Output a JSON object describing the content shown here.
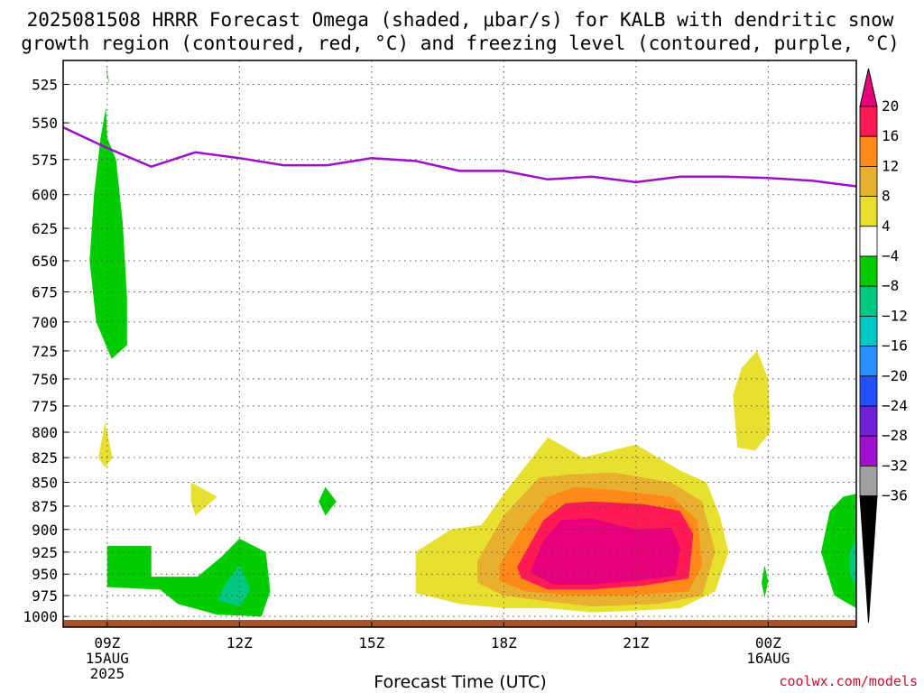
{
  "chart_data": {
    "type": "contour",
    "title_lines": [
      "2025081508 HRRR Forecast Omega (shaded, μbar/s) for KALB with dendritic snow",
      "growth region (contoured, red, °C) and freezing level (contoured, purple, °C)"
    ],
    "xlabel": "Forecast Time (UTC)",
    "ylabel": "",
    "x_ticks": [
      {
        "hour": 9,
        "lines": [
          "09Z",
          "15AUG",
          "2025"
        ]
      },
      {
        "hour": 12,
        "lines": [
          "12Z"
        ]
      },
      {
        "hour": 15,
        "lines": [
          "15Z"
        ]
      },
      {
        "hour": 18,
        "lines": [
          "18Z"
        ]
      },
      {
        "hour": 21,
        "lines": [
          "21Z"
        ]
      },
      {
        "hour": 24,
        "lines": [
          "00Z",
          "16AUG"
        ]
      }
    ],
    "xlim": [
      8,
      26
    ],
    "y_ticks": [
      525,
      550,
      575,
      600,
      625,
      650,
      675,
      700,
      725,
      750,
      775,
      800,
      825,
      850,
      875,
      900,
      925,
      950,
      975,
      1000
    ],
    "ylim_pressure": [
      510,
      1013
    ],
    "y_scale": "log-pressure",
    "grid": true,
    "freezing_level": {
      "color": "#9b0fc9",
      "points": [
        [
          8,
          553
        ],
        [
          8.5,
          560
        ],
        [
          9,
          567
        ],
        [
          10,
          580
        ],
        [
          11,
          570
        ],
        [
          12,
          574
        ],
        [
          13,
          579
        ],
        [
          14,
          579
        ],
        [
          15,
          574
        ],
        [
          16,
          576
        ],
        [
          17,
          583
        ],
        [
          18,
          583
        ],
        [
          19,
          589
        ],
        [
          20,
          587
        ],
        [
          21,
          591
        ],
        [
          22,
          587
        ],
        [
          23,
          587
        ],
        [
          24,
          588
        ],
        [
          25,
          590
        ],
        [
          26,
          594
        ]
      ]
    },
    "colorbar": {
      "labels": [
        "20",
        "16",
        "12",
        "8",
        "4",
        "−4",
        "−8",
        "−12",
        "−16",
        "−20",
        "−24",
        "−28",
        "−32",
        "−36"
      ],
      "colors": [
        "#ff1a55",
        "#ff8a1a",
        "#e8b02e",
        "#e8e030",
        "#ffffff",
        "#00cc00",
        "#00c880",
        "#00c8c8",
        "#2a90ff",
        "#2050ff",
        "#7020d8",
        "#a010d0",
        "#a0a0a0"
      ],
      "top_arrow": "#e8007a",
      "bottom_arrow": "#000000"
    },
    "omega_regions": [
      {
        "value": -6,
        "color": "#00cc00",
        "points": [
          [
            8.97,
            512
          ],
          [
            9.05,
            525
          ],
          [
            9.0,
            520
          ]
        ]
      },
      {
        "value": -6,
        "color": "#00cc00",
        "points": [
          [
            9.0,
            560
          ],
          [
            9.2,
            575
          ],
          [
            9.35,
            620
          ],
          [
            9.45,
            680
          ],
          [
            9.45,
            720
          ],
          [
            9.1,
            732
          ],
          [
            8.75,
            700
          ],
          [
            8.6,
            650
          ],
          [
            8.7,
            600
          ],
          [
            8.85,
            560
          ],
          [
            8.97,
            540
          ]
        ]
      },
      {
        "value": 6,
        "color": "#e8e030",
        "points": [
          [
            8.95,
            790
          ],
          [
            9.12,
            825
          ],
          [
            8.95,
            835
          ],
          [
            8.8,
            825
          ]
        ]
      },
      {
        "value": 6,
        "color": "#e8e030",
        "points": [
          [
            10.9,
            850
          ],
          [
            11.5,
            865
          ],
          [
            11.0,
            885
          ],
          [
            10.9,
            870
          ]
        ]
      },
      {
        "value": -6,
        "color": "#00cc00",
        "points": [
          [
            9.0,
            918
          ],
          [
            10.0,
            918
          ],
          [
            10.0,
            953
          ],
          [
            11.05,
            953
          ],
          [
            11.6,
            930
          ],
          [
            12.0,
            910
          ],
          [
            12.6,
            925
          ],
          [
            12.7,
            970
          ],
          [
            12.5,
            1000
          ],
          [
            11.5,
            998
          ],
          [
            10.6,
            985
          ],
          [
            10.2,
            968
          ],
          [
            9.0,
            965
          ]
        ]
      },
      {
        "value": -10,
        "color": "#00c880",
        "points": [
          [
            12.0,
            940
          ],
          [
            12.25,
            968
          ],
          [
            12.0,
            988
          ],
          [
            11.5,
            980
          ],
          [
            11.7,
            960
          ]
        ]
      },
      {
        "value": -6,
        "color": "#00cc00",
        "points": [
          [
            13.95,
            855
          ],
          [
            14.2,
            870
          ],
          [
            13.95,
            885
          ],
          [
            13.8,
            870
          ]
        ]
      },
      {
        "value": 6,
        "color": "#e8e030",
        "points": [
          [
            16.0,
            925
          ],
          [
            16.8,
            900
          ],
          [
            17.5,
            895
          ],
          [
            18.0,
            862
          ],
          [
            19.0,
            805
          ],
          [
            19.8,
            825
          ],
          [
            21.0,
            812
          ],
          [
            22.0,
            838
          ],
          [
            22.6,
            850
          ],
          [
            22.9,
            885
          ],
          [
            23.1,
            925
          ],
          [
            22.8,
            970
          ],
          [
            22.0,
            990
          ],
          [
            21.0,
            993
          ],
          [
            20.0,
            995
          ],
          [
            19.0,
            990
          ],
          [
            18.0,
            990
          ],
          [
            17.0,
            985
          ],
          [
            16.0,
            972
          ]
        ]
      },
      {
        "value": 10,
        "color": "#e8b02e",
        "points": [
          [
            17.4,
            935
          ],
          [
            18.0,
            885
          ],
          [
            18.8,
            845
          ],
          [
            19.5,
            842
          ],
          [
            20.5,
            840
          ],
          [
            21.8,
            850
          ],
          [
            22.5,
            870
          ],
          [
            22.8,
            925
          ],
          [
            22.5,
            975
          ],
          [
            21.5,
            985
          ],
          [
            20.0,
            988
          ],
          [
            19.0,
            982
          ],
          [
            18.0,
            975
          ],
          [
            17.4,
            960
          ]
        ]
      },
      {
        "value": 14,
        "color": "#ff8a1a",
        "points": [
          [
            17.9,
            940
          ],
          [
            18.4,
            900
          ],
          [
            19.0,
            865
          ],
          [
            19.6,
            855
          ],
          [
            20.5,
            858
          ],
          [
            21.8,
            865
          ],
          [
            22.4,
            890
          ],
          [
            22.5,
            940
          ],
          [
            22.2,
            970
          ],
          [
            20.8,
            975
          ],
          [
            19.5,
            975
          ],
          [
            18.5,
            970
          ],
          [
            17.9,
            958
          ]
        ]
      },
      {
        "value": 18,
        "color": "#ff1a55",
        "points": [
          [
            18.3,
            942
          ],
          [
            18.9,
            890
          ],
          [
            19.4,
            872
          ],
          [
            20.0,
            870
          ],
          [
            21.2,
            873
          ],
          [
            22.0,
            880
          ],
          [
            22.3,
            905
          ],
          [
            22.2,
            955
          ],
          [
            21.2,
            963
          ],
          [
            20.0,
            968
          ],
          [
            19.0,
            968
          ],
          [
            18.4,
            955
          ]
        ]
      },
      {
        "value": 22,
        "color": "#e8007a",
        "points": [
          [
            18.6,
            948
          ],
          [
            18.9,
            912
          ],
          [
            19.3,
            890
          ],
          [
            20.0,
            888
          ],
          [
            21.0,
            900
          ],
          [
            21.8,
            898
          ],
          [
            22.0,
            920
          ],
          [
            21.9,
            952
          ],
          [
            21.0,
            958
          ],
          [
            20.0,
            962
          ],
          [
            19.1,
            962
          ]
        ]
      },
      {
        "value": 6,
        "color": "#e8e030",
        "points": [
          [
            23.75,
            725
          ],
          [
            24.0,
            750
          ],
          [
            24.05,
            800
          ],
          [
            23.7,
            818
          ],
          [
            23.3,
            815
          ],
          [
            23.2,
            765
          ],
          [
            23.4,
            740
          ]
        ]
      },
      {
        "value": -6,
        "color": "#00cc00",
        "points": [
          [
            23.92,
            940
          ],
          [
            24.0,
            958
          ],
          [
            23.92,
            978
          ],
          [
            23.85,
            960
          ]
        ]
      },
      {
        "value": -6,
        "color": "#00cc00",
        "points": [
          [
            26.0,
            862
          ],
          [
            26.0,
            990
          ],
          [
            25.5,
            975
          ],
          [
            25.2,
            925
          ],
          [
            25.4,
            880
          ],
          [
            25.7,
            865
          ]
        ]
      },
      {
        "value": -10,
        "color": "#00c880",
        "points": [
          [
            26.0,
            910
          ],
          [
            26.0,
            965
          ],
          [
            25.85,
            950
          ],
          [
            25.85,
            925
          ]
        ]
      }
    ],
    "surface_strip": {
      "color": "#a8532c"
    },
    "credit": "coolwx.com/models"
  }
}
